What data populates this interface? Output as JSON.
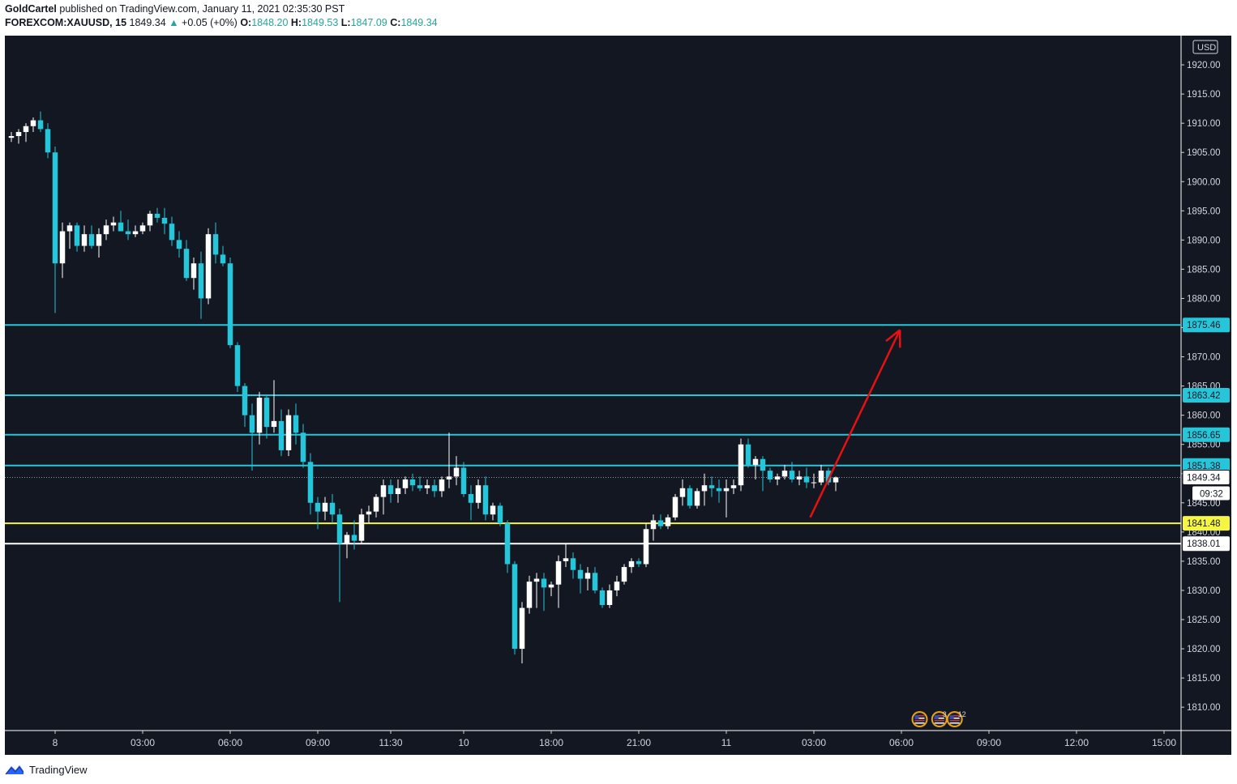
{
  "header": {
    "author": "GoldCartel",
    "published_text": "published on TradingView.com, January 11, 2021 02:35:30 PST",
    "symbol": "FOREXCOM:XAUUSD, 15",
    "last_price": "1849.34",
    "change_arrow": "▲",
    "change_text": "+0.05 (+0%)",
    "o_label": "O:",
    "o_value": "1848.20",
    "h_label": "H:",
    "h_value": "1849.53",
    "l_label": "L:",
    "l_value": "1847.09",
    "c_label": "C:",
    "c_value": "1849.34"
  },
  "footer": {
    "brand": "TradingView",
    "logo_icon": "tradingview-logo-icon"
  },
  "colors": {
    "background": "#131722",
    "up_candle": "#ffffff",
    "down_candle": "#26c6da",
    "level_line": "#26c6da",
    "support_line": "#f5f542",
    "base_line": "#ffffff",
    "arrow": "#e81010"
  },
  "chart_data": {
    "type": "candlestick",
    "currency": "USD",
    "ylim": [
      1806,
      1925
    ],
    "y_ticks": [
      1810,
      1815,
      1820,
      1825,
      1830,
      1835,
      1840,
      1845,
      1850,
      1855,
      1860,
      1865,
      1870,
      1875,
      1880,
      1885,
      1890,
      1895,
      1900,
      1905,
      1910,
      1915,
      1920
    ],
    "y_tick_labels": [
      "1810.00",
      "1815.00",
      "1820.00",
      "1825.00",
      "1830.00",
      "1835.00",
      "1840.00",
      "1845.00",
      "1850.00",
      "1855.00",
      "1860.00",
      "1865.00",
      "1870.00",
      "1875.00",
      "1880.00",
      "1885.00",
      "1890.00",
      "1895.00",
      "1900.00",
      "1905.00",
      "1910.00",
      "1915.00",
      "1920.00"
    ],
    "xlim": [
      0,
      157
    ],
    "x_ticks": [
      {
        "i": 6,
        "label": "8"
      },
      {
        "i": 18,
        "label": "03:00"
      },
      {
        "i": 30,
        "label": "06:00"
      },
      {
        "i": 42,
        "label": "09:00"
      },
      {
        "i": 52,
        "label": "11:30"
      },
      {
        "i": 62,
        "label": "10"
      },
      {
        "i": 74,
        "label": "18:00"
      },
      {
        "i": 86,
        "label": "21:00"
      },
      {
        "i": 98,
        "label": "11"
      },
      {
        "i": 110,
        "label": "03:00"
      },
      {
        "i": 122,
        "label": "06:00"
      },
      {
        "i": 134,
        "label": "09:00"
      },
      {
        "i": 146,
        "label": "12:00"
      },
      {
        "i": 158,
        "label": "15:00"
      }
    ],
    "candles": [
      [
        1907.5,
        1908.5,
        1906.8,
        1907.8
      ],
      [
        1907.8,
        1909.0,
        1906.5,
        1908.5
      ],
      [
        1908.5,
        1910.0,
        1906.8,
        1909.5
      ],
      [
        1909.5,
        1911.0,
        1908.5,
        1910.5
      ],
      [
        1910.5,
        1912.0,
        1908.5,
        1909.0
      ],
      [
        1909.0,
        1910.0,
        1904.0,
        1905.0
      ],
      [
        1905.0,
        1906.0,
        1877.5,
        1886.0
      ],
      [
        1886.0,
        1893.0,
        1883.5,
        1891.5
      ],
      [
        1891.5,
        1893.0,
        1888.5,
        1892.5
      ],
      [
        1892.5,
        1893.0,
        1888.0,
        1889.0
      ],
      [
        1889.0,
        1892.5,
        1888.0,
        1891.0
      ],
      [
        1891.0,
        1892.5,
        1888.5,
        1889.0
      ],
      [
        1889.0,
        1892.0,
        1887.0,
        1891.0
      ],
      [
        1891.0,
        1893.5,
        1890.0,
        1892.5
      ],
      [
        1892.5,
        1894.0,
        1891.5,
        1893.0
      ],
      [
        1893.0,
        1895.0,
        1891.5,
        1891.5
      ],
      [
        1891.5,
        1893.5,
        1890.0,
        1891.0
      ],
      [
        1891.0,
        1892.5,
        1890.5,
        1891.5
      ],
      [
        1891.5,
        1893.0,
        1891.0,
        1892.5
      ],
      [
        1892.5,
        1895.0,
        1891.5,
        1894.5
      ],
      [
        1894.5,
        1895.5,
        1893.0,
        1893.8
      ],
      [
        1893.8,
        1895.5,
        1891.0,
        1892.8
      ],
      [
        1892.8,
        1894.0,
        1889.0,
        1890.0
      ],
      [
        1890.0,
        1891.5,
        1887.0,
        1888.5
      ],
      [
        1888.5,
        1890.0,
        1883.0,
        1883.5
      ],
      [
        1883.5,
        1887.0,
        1881.5,
        1886.0
      ],
      [
        1886.0,
        1888.0,
        1876.5,
        1880.0
      ],
      [
        1880.0,
        1892.0,
        1879.0,
        1891.0
      ],
      [
        1891.0,
        1893.0,
        1886.0,
        1887.5
      ],
      [
        1887.5,
        1889.0,
        1885.5,
        1886.0
      ],
      [
        1886.0,
        1887.0,
        1871.5,
        1872.0
      ],
      [
        1872.0,
        1872.5,
        1864.0,
        1865.0
      ],
      [
        1865.0,
        1865.5,
        1858.0,
        1860.0
      ],
      [
        1860.0,
        1862.0,
        1850.5,
        1857.0
      ],
      [
        1857.0,
        1864.0,
        1855.0,
        1863.0
      ],
      [
        1863.0,
        1863.5,
        1856.0,
        1858.0
      ],
      [
        1858.0,
        1866.0,
        1857.0,
        1859.0
      ],
      [
        1859.0,
        1861.0,
        1853.0,
        1854.0
      ],
      [
        1854.0,
        1861.0,
        1853.0,
        1860.0
      ],
      [
        1860.0,
        1862.0,
        1855.0,
        1857.0
      ],
      [
        1857.0,
        1858.5,
        1851.0,
        1852.0
      ],
      [
        1852.0,
        1853.5,
        1843.0,
        1845.0
      ],
      [
        1845.0,
        1846.0,
        1840.5,
        1843.5
      ],
      [
        1843.5,
        1846.0,
        1842.0,
        1845.0
      ],
      [
        1845.0,
        1846.5,
        1841.5,
        1843.0
      ],
      [
        1843.0,
        1844.0,
        1828.0,
        1838.0
      ],
      [
        1838.0,
        1840.0,
        1835.5,
        1839.5
      ],
      [
        1839.5,
        1842.0,
        1837.0,
        1838.5
      ],
      [
        1838.5,
        1844.0,
        1838.0,
        1843.0
      ],
      [
        1843.0,
        1844.5,
        1841.5,
        1843.5
      ],
      [
        1843.5,
        1846.5,
        1842.5,
        1846.0
      ],
      [
        1846.0,
        1849.0,
        1843.0,
        1848.0
      ],
      [
        1848.0,
        1849.0,
        1845.0,
        1846.5
      ],
      [
        1846.5,
        1849.0,
        1845.0,
        1847.5
      ],
      [
        1847.5,
        1849.5,
        1846.5,
        1849.0
      ],
      [
        1849.0,
        1850.0,
        1847.0,
        1848.0
      ],
      [
        1848.0,
        1849.5,
        1847.0,
        1847.5
      ],
      [
        1847.5,
        1849.0,
        1846.5,
        1848.0
      ],
      [
        1848.0,
        1849.0,
        1846.0,
        1847.0
      ],
      [
        1847.0,
        1849.5,
        1846.0,
        1849.0
      ],
      [
        1849.0,
        1857.0,
        1847.5,
        1849.5
      ],
      [
        1849.5,
        1853.0,
        1848.0,
        1851.0
      ],
      [
        1851.0,
        1852.0,
        1846.0,
        1846.5
      ],
      [
        1846.5,
        1848.0,
        1842.0,
        1845.0
      ],
      [
        1845.0,
        1849.0,
        1844.0,
        1848.0
      ],
      [
        1848.0,
        1849.5,
        1842.0,
        1843.0
      ],
      [
        1843.0,
        1845.0,
        1842.0,
        1844.5
      ],
      [
        1844.5,
        1845.0,
        1841.0,
        1841.5
      ],
      [
        1841.5,
        1842.0,
        1833.0,
        1834.5
      ],
      [
        1834.5,
        1835.0,
        1819.0,
        1820.0
      ],
      [
        1820.0,
        1828.0,
        1817.5,
        1827.0
      ],
      [
        1827.0,
        1832.5,
        1826.0,
        1831.5
      ],
      [
        1831.5,
        1833.0,
        1827.0,
        1832.0
      ],
      [
        1832.0,
        1833.0,
        1826.5,
        1830.5
      ],
      [
        1830.5,
        1831.5,
        1829.0,
        1831.0
      ],
      [
        1831.0,
        1836.0,
        1827.0,
        1835.0
      ],
      [
        1835.0,
        1838.0,
        1834.0,
        1835.5
      ],
      [
        1835.5,
        1836.5,
        1832.0,
        1833.5
      ],
      [
        1833.5,
        1834.5,
        1829.5,
        1832.0
      ],
      [
        1832.0,
        1834.0,
        1830.0,
        1833.0
      ],
      [
        1833.0,
        1834.0,
        1829.5,
        1830.0
      ],
      [
        1830.0,
        1830.5,
        1827.0,
        1827.5
      ],
      [
        1827.5,
        1831.0,
        1827.0,
        1830.0
      ],
      [
        1830.0,
        1832.5,
        1829.0,
        1831.5
      ],
      [
        1831.5,
        1834.5,
        1831.0,
        1834.0
      ],
      [
        1834.0,
        1835.5,
        1833.0,
        1835.0
      ],
      [
        1835.0,
        1835.5,
        1834.0,
        1834.5
      ],
      [
        1834.5,
        1841.5,
        1834.0,
        1840.5
      ],
      [
        1840.5,
        1843.0,
        1838.5,
        1842.0
      ],
      [
        1842.0,
        1843.0,
        1840.5,
        1841.0
      ],
      [
        1841.0,
        1843.0,
        1840.5,
        1842.5
      ],
      [
        1842.5,
        1846.5,
        1842.0,
        1846.0
      ],
      [
        1846.0,
        1849.0,
        1844.5,
        1847.5
      ],
      [
        1847.5,
        1848.0,
        1844.0,
        1844.5
      ],
      [
        1844.5,
        1847.5,
        1844.0,
        1847.0
      ],
      [
        1847.0,
        1850.0,
        1844.5,
        1848.0
      ],
      [
        1848.0,
        1849.5,
        1846.0,
        1847.5
      ],
      [
        1847.5,
        1849.0,
        1845.0,
        1847.0
      ],
      [
        1847.0,
        1849.0,
        1842.5,
        1847.5
      ],
      [
        1847.5,
        1849.0,
        1846.5,
        1848.0
      ],
      [
        1848.0,
        1856.0,
        1847.0,
        1855.0
      ],
      [
        1855.0,
        1856.0,
        1851.0,
        1851.5
      ],
      [
        1851.5,
        1853.0,
        1849.0,
        1852.5
      ],
      [
        1852.5,
        1853.0,
        1847.0,
        1850.5
      ],
      [
        1850.5,
        1851.0,
        1848.5,
        1849.0
      ],
      [
        1849.0,
        1850.0,
        1848.0,
        1849.5
      ],
      [
        1849.5,
        1851.5,
        1849.0,
        1850.5
      ],
      [
        1850.5,
        1852.0,
        1848.5,
        1849.0
      ],
      [
        1849.0,
        1850.5,
        1848.0,
        1849.5
      ],
      [
        1849.5,
        1851.0,
        1847.5,
        1848.5
      ],
      [
        1848.5,
        1850.0,
        1847.5,
        1848.5
      ],
      [
        1848.5,
        1851.5,
        1848.0,
        1850.5
      ],
      [
        1850.5,
        1851.0,
        1848.0,
        1848.5
      ],
      [
        1848.5,
        1849.5,
        1847.0,
        1849.34
      ]
    ],
    "horizontal_levels": [
      {
        "value": 1875.46,
        "label": "1875.46",
        "style": "level"
      },
      {
        "value": 1863.42,
        "label": "1863.42",
        "style": "level"
      },
      {
        "value": 1856.65,
        "label": "1856.65",
        "style": "level"
      },
      {
        "value": 1851.38,
        "label": "1851.38",
        "style": "level"
      },
      {
        "value": 1841.48,
        "label": "1841.48",
        "style": "support"
      },
      {
        "value": 1838.01,
        "label": "1838.01",
        "style": "base"
      }
    ],
    "last_price": {
      "value": 1849.34,
      "label": "1849.34",
      "countdown": "09:32"
    },
    "arrow": {
      "from": [
        109.5,
        1842.5
      ],
      "to": [
        121.8,
        1874.6
      ]
    },
    "events": [
      {
        "i": 124.5,
        "type": "flag-icon",
        "count": ""
      },
      {
        "i": 127.2,
        "type": "flag-icon",
        "count": "3"
      },
      {
        "i": 129.3,
        "type": "flag-icon",
        "count": "12"
      }
    ]
  }
}
